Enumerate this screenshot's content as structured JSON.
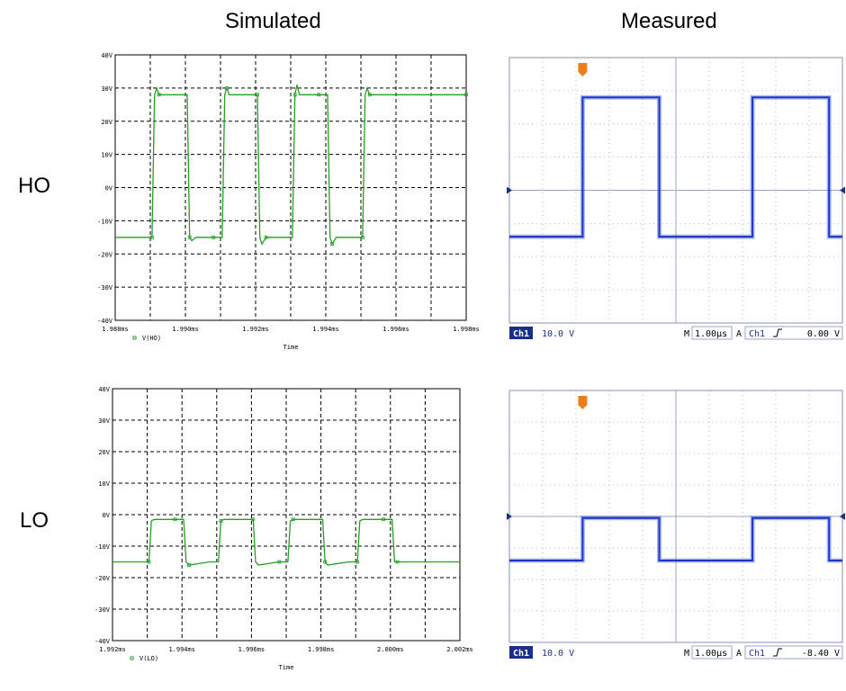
{
  "headers": {
    "simulated": "Simulated",
    "measured": "Measured"
  },
  "rows": {
    "ho": "HO",
    "lo": "LO"
  },
  "colors": {
    "sim_trace": "#22a022",
    "sim_grid": "#000000",
    "scope_trace": "#1a35c8",
    "scope_grid": "#9aa4c4",
    "scope_bar": "#1a2f8a",
    "trigger": "#e87f1a"
  },
  "chart_data": [
    {
      "type": "line",
      "panel": "sim-ho",
      "ylim": [
        -40,
        40
      ],
      "xlim": [
        1.988,
        1.998
      ],
      "y_ticks": [
        "40V",
        "30V",
        "20V",
        "10V",
        "0V",
        "-10V",
        "-20V",
        "-30V",
        "-40V"
      ],
      "x_ticks": [
        "1.988ms",
        "1.990ms",
        "1.992ms",
        "1.994ms",
        "1.996ms",
        "1.998ms"
      ],
      "xlabel": "Time",
      "legend": "V(HO)",
      "series": [
        {
          "name": "V(HO)",
          "x": [
            1.988,
            1.98905,
            1.98912,
            1.98918,
            1.98925,
            1.9898,
            1.99005,
            1.99012,
            1.99018,
            1.9903,
            1.9908,
            1.99105,
            1.99112,
            1.99118,
            1.99125,
            1.9918,
            1.99205,
            1.99212,
            1.99218,
            1.9923,
            1.9928,
            1.99305,
            1.99312,
            1.99318,
            1.99325,
            1.9938,
            1.99405,
            1.99412,
            1.99418,
            1.9943,
            1.9948,
            1.99505,
            1.99512,
            1.99518,
            1.99525,
            1.9958,
            1.996,
            1.998
          ],
          "y": [
            -15,
            -15,
            28,
            30,
            28,
            28,
            28,
            -15,
            -16,
            -15,
            -15,
            -15,
            28,
            30,
            28,
            28,
            28,
            -15,
            -17,
            -15,
            -15,
            -15,
            28,
            31,
            28,
            28,
            28,
            -15,
            -17,
            -15,
            -15,
            -15,
            28,
            30,
            28,
            28,
            28,
            28
          ]
        }
      ]
    },
    {
      "type": "line",
      "panel": "scope-ho",
      "ylim": [
        -40,
        40
      ],
      "xlim": [
        0,
        10
      ],
      "scale_label": "Ch1",
      "volts_div": "10.0 V",
      "m_label": "M",
      "time_div": "1.00µs",
      "a_label": "A",
      "trig_channel": "Ch1",
      "trig_level": "0.00 V",
      "series": [
        {
          "name": "Ch1",
          "x": [
            0,
            2.2,
            2.2,
            4.5,
            4.5,
            7.3,
            7.3,
            9.6,
            9.6,
            10
          ],
          "y": [
            -14,
            -14,
            28,
            28,
            -14,
            -14,
            28,
            28,
            -14,
            -14
          ]
        }
      ]
    },
    {
      "type": "line",
      "panel": "sim-lo",
      "ylim": [
        -40,
        40
      ],
      "xlim": [
        1.992,
        2.002
      ],
      "y_ticks": [
        "40V",
        "30V",
        "20V",
        "10V",
        "0V",
        "-10V",
        "-20V",
        "-30V",
        "-40V"
      ],
      "x_ticks": [
        "1.992ms",
        "1.994ms",
        "1.996ms",
        "1.998ms",
        "2.000ms",
        "2.002ms"
      ],
      "xlabel": "Time",
      "legend": "V(LO)",
      "series": [
        {
          "name": "V(LO)",
          "x": [
            1.992,
            1.99305,
            1.99312,
            1.9932,
            1.9938,
            1.99405,
            1.99412,
            1.9942,
            1.9948,
            1.99505,
            1.99512,
            1.9952,
            1.9958,
            1.99605,
            1.99612,
            1.9962,
            1.9968,
            1.99705,
            1.99712,
            1.9972,
            1.9978,
            1.99805,
            1.99812,
            1.9982,
            1.9988,
            1.99905,
            1.99912,
            1.9992,
            1.9998,
            2.00005,
            2.00012,
            2.0002,
            2.002
          ],
          "y": [
            -15,
            -15,
            -2,
            -1.5,
            -1.5,
            -1.5,
            -15,
            -16,
            -15,
            -15,
            -2,
            -1.5,
            -1.5,
            -1.5,
            -15,
            -16,
            -15,
            -15,
            -2,
            -1.5,
            -1.5,
            -1.5,
            -15,
            -16,
            -15,
            -15,
            -2,
            -1.5,
            -1.5,
            -1.5,
            -15,
            -15,
            -15
          ]
        }
      ]
    },
    {
      "type": "line",
      "panel": "scope-lo",
      "ylim": [
        -40,
        40
      ],
      "xlim": [
        0,
        10
      ],
      "scale_label": "Ch1",
      "volts_div": "10.0 V",
      "m_label": "M",
      "time_div": "1.00µs",
      "a_label": "A",
      "trig_channel": "Ch1",
      "trig_level": "-8.40 V",
      "series": [
        {
          "name": "Ch1",
          "x": [
            0,
            2.2,
            2.2,
            4.5,
            4.5,
            7.3,
            7.3,
            9.6,
            9.6,
            10
          ],
          "y": [
            -14,
            -14,
            -0.5,
            -0.5,
            -14,
            -14,
            -0.5,
            -0.5,
            -14,
            -14
          ]
        }
      ]
    }
  ]
}
